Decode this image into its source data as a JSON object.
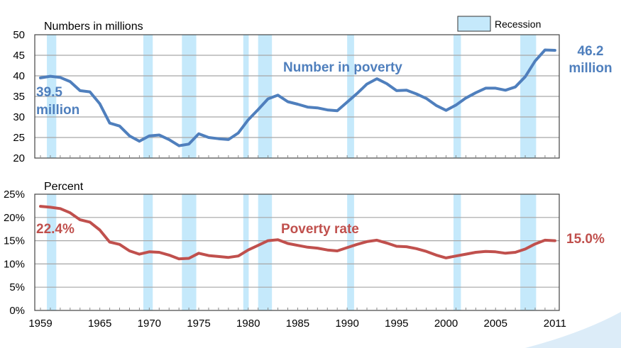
{
  "chart_data": [
    {
      "type": "line",
      "title": "Numbers in millions",
      "ylim": [
        20,
        50
      ],
      "yticks": [
        "20",
        "25",
        "30",
        "35",
        "40",
        "45",
        "50"
      ],
      "grid": true,
      "series": [
        {
          "name": "Number in poverty",
          "color": "#4f7fbd",
          "x": [
            1959,
            1960,
            1961,
            1962,
            1963,
            1964,
            1965,
            1966,
            1967,
            1968,
            1969,
            1970,
            1971,
            1972,
            1973,
            1974,
            1975,
            1976,
            1977,
            1978,
            1979,
            1980,
            1981,
            1982,
            1983,
            1984,
            1985,
            1986,
            1987,
            1988,
            1989,
            1990,
            1991,
            1992,
            1993,
            1994,
            1995,
            1996,
            1997,
            1998,
            1999,
            2000,
            2001,
            2002,
            2003,
            2004,
            2005,
            2006,
            2007,
            2008,
            2009,
            2010,
            2011
          ],
          "values": [
            39.5,
            39.9,
            39.6,
            38.6,
            36.4,
            36.1,
            33.2,
            28.5,
            27.8,
            25.4,
            24.1,
            25.4,
            25.6,
            24.5,
            23.0,
            23.4,
            25.9,
            25.0,
            24.7,
            24.5,
            26.1,
            29.3,
            31.8,
            34.4,
            35.3,
            33.7,
            33.1,
            32.4,
            32.2,
            31.7,
            31.5,
            33.6,
            35.7,
            38.0,
            39.3,
            38.1,
            36.4,
            36.5,
            35.6,
            34.5,
            32.8,
            31.6,
            32.9,
            34.6,
            35.9,
            37.0,
            37.0,
            36.5,
            37.3,
            39.8,
            43.6,
            46.3,
            46.2
          ]
        }
      ],
      "annotations": {
        "start_value": "39.5",
        "start_unit": "million",
        "end_value": "46.2",
        "end_unit": "million"
      }
    },
    {
      "type": "line",
      "title": "Percent",
      "ylim": [
        0,
        25
      ],
      "yticks": [
        "0%",
        "5%",
        "10%",
        "15%",
        "20%",
        "25%"
      ],
      "xticks": [
        "1959",
        "1965",
        "1970",
        "1975",
        "1980",
        "1985",
        "1990",
        "1995",
        "2000",
        "2005",
        "2011"
      ],
      "grid": true,
      "series": [
        {
          "name": "Poverty rate",
          "color": "#c0504d",
          "x": [
            1959,
            1960,
            1961,
            1962,
            1963,
            1964,
            1965,
            1966,
            1967,
            1968,
            1969,
            1970,
            1971,
            1972,
            1973,
            1974,
            1975,
            1976,
            1977,
            1978,
            1979,
            1980,
            1981,
            1982,
            1983,
            1984,
            1985,
            1986,
            1987,
            1988,
            1989,
            1990,
            1991,
            1992,
            1993,
            1994,
            1995,
            1996,
            1997,
            1998,
            1999,
            2000,
            2001,
            2002,
            2003,
            2004,
            2005,
            2006,
            2007,
            2008,
            2009,
            2010,
            2011
          ],
          "values": [
            22.4,
            22.2,
            21.9,
            21.0,
            19.5,
            19.0,
            17.3,
            14.7,
            14.2,
            12.8,
            12.1,
            12.6,
            12.5,
            11.9,
            11.1,
            11.2,
            12.3,
            11.8,
            11.6,
            11.4,
            11.7,
            13.0,
            14.0,
            15.0,
            15.2,
            14.4,
            14.0,
            13.6,
            13.4,
            13.0,
            12.8,
            13.5,
            14.2,
            14.8,
            15.1,
            14.5,
            13.8,
            13.7,
            13.3,
            12.7,
            11.9,
            11.3,
            11.7,
            12.1,
            12.5,
            12.7,
            12.6,
            12.3,
            12.5,
            13.2,
            14.3,
            15.1,
            15.0
          ]
        }
      ],
      "annotations": {
        "start_value": "22.4%",
        "end_value": "15.0%"
      }
    }
  ],
  "recessions": [
    [
      1959.65,
      1960.6
    ],
    [
      1969.4,
      1970.35
    ],
    [
      1973.3,
      1974.75
    ],
    [
      1979.5,
      1980.05
    ],
    [
      1981.0,
      1982.4
    ],
    [
      1990.0,
      1990.7
    ],
    [
      2000.75,
      2001.5
    ],
    [
      2007.5,
      2009.1
    ]
  ],
  "legend": {
    "label": "Recession",
    "color": "#c5e9fb"
  }
}
